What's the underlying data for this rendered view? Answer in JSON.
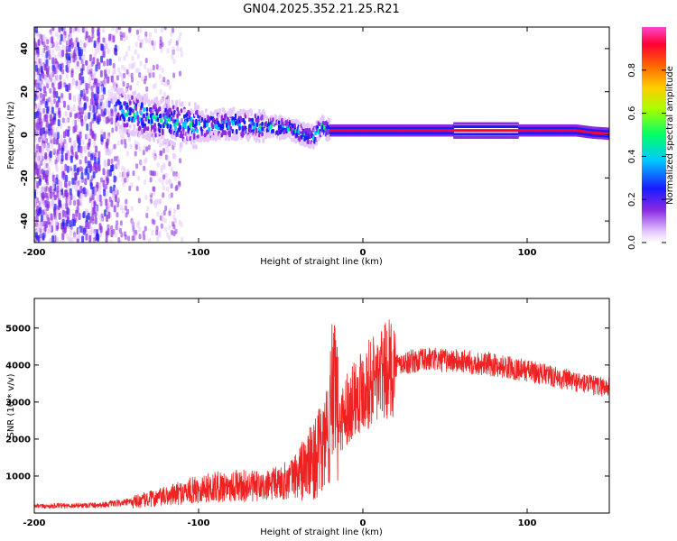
{
  "title": "GN04.2025.352.21.25.R21",
  "chart_data": [
    {
      "type": "heatmap",
      "name": "spectrogram",
      "xlabel": "Height of straight line (km)",
      "ylabel": "Frequency (Hz)",
      "xlim": [
        -200,
        150
      ],
      "ylim": [
        -50,
        50
      ],
      "xticks": [
        -200,
        -100,
        0,
        100
      ],
      "yticks": [
        -40,
        -20,
        0,
        20,
        40
      ],
      "ridge": {
        "description": "dominant spectral line",
        "points": [
          [
            -150,
            12
          ],
          [
            -120,
            6
          ],
          [
            -100,
            4
          ],
          [
            -80,
            5
          ],
          [
            -60,
            4
          ],
          [
            -45,
            3
          ],
          [
            -35,
            0
          ],
          [
            -30,
            -1
          ],
          [
            -25,
            4
          ],
          [
            -20,
            2
          ],
          [
            0,
            2
          ],
          [
            50,
            2
          ],
          [
            100,
            2
          ],
          [
            130,
            2
          ],
          [
            140,
            1
          ],
          [
            150,
            0.5
          ]
        ]
      },
      "colorbar": {
        "label": "Normalized spectral amplitude",
        "range": [
          0,
          1
        ],
        "ticks": [
          "0.0",
          "0.2",
          "0.4",
          "0.6",
          "0.8"
        ],
        "tick_values": [
          0,
          0.2,
          0.4,
          0.6,
          0.8
        ]
      }
    },
    {
      "type": "line",
      "name": "snr",
      "xlabel": "Height of straight line (km)",
      "ylabel": "SNR (10 * v/v)",
      "xlim": [
        -200,
        150
      ],
      "ylim": [
        0,
        5800
      ],
      "xticks": [
        -200,
        -100,
        0,
        100
      ],
      "yticks": [
        1000,
        2000,
        3000,
        4000,
        5000
      ],
      "color": "#ee2222",
      "series": [
        {
          "name": "SNR",
          "x": [
            -200,
            -180,
            -160,
            -140,
            -120,
            -100,
            -80,
            -60,
            -45,
            -35,
            -25,
            -20,
            -18,
            -15,
            -10,
            -5,
            0,
            10,
            20,
            30,
            40,
            60,
            80,
            100,
            120,
            140,
            150
          ],
          "y": [
            180,
            200,
            220,
            300,
            450,
            650,
            750,
            700,
            900,
            1200,
            1700,
            2400,
            3300,
            2400,
            2800,
            3200,
            3400,
            3700,
            4000,
            4100,
            4150,
            4100,
            4000,
            3850,
            3650,
            3450,
            3400
          ]
        }
      ]
    }
  ]
}
